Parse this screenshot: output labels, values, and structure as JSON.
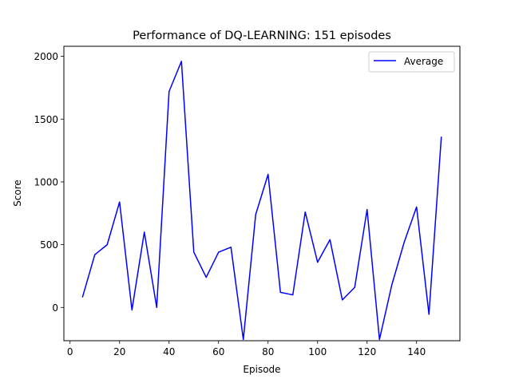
{
  "chart_data": {
    "type": "line",
    "title": "Performance of DQ-LEARNING: 151 episodes",
    "xlabel": "Episode",
    "ylabel": "Score",
    "xlim": [
      -2.5,
      157.5
    ],
    "ylim": [
      -265,
      2080
    ],
    "xticks": [
      0,
      20,
      40,
      60,
      80,
      100,
      120,
      140
    ],
    "yticks": [
      0,
      500,
      1000,
      1500,
      2000
    ],
    "grid": false,
    "legend_position": "top-right",
    "series": [
      {
        "name": "Average",
        "color": "#0000ff",
        "x": [
          5,
          10,
          15,
          20,
          25,
          30,
          35,
          40,
          45,
          50,
          55,
          60,
          65,
          70,
          75,
          80,
          85,
          90,
          95,
          100,
          105,
          110,
          115,
          120,
          125,
          130,
          135,
          140,
          145,
          150
        ],
        "y": [
          80,
          420,
          500,
          840,
          -20,
          600,
          0,
          1720,
          1960,
          440,
          240,
          440,
          480,
          -255,
          740,
          1060,
          120,
          100,
          760,
          360,
          540,
          60,
          160,
          780,
          -255,
          180,
          520,
          800,
          -55,
          1360
        ]
      }
    ]
  }
}
